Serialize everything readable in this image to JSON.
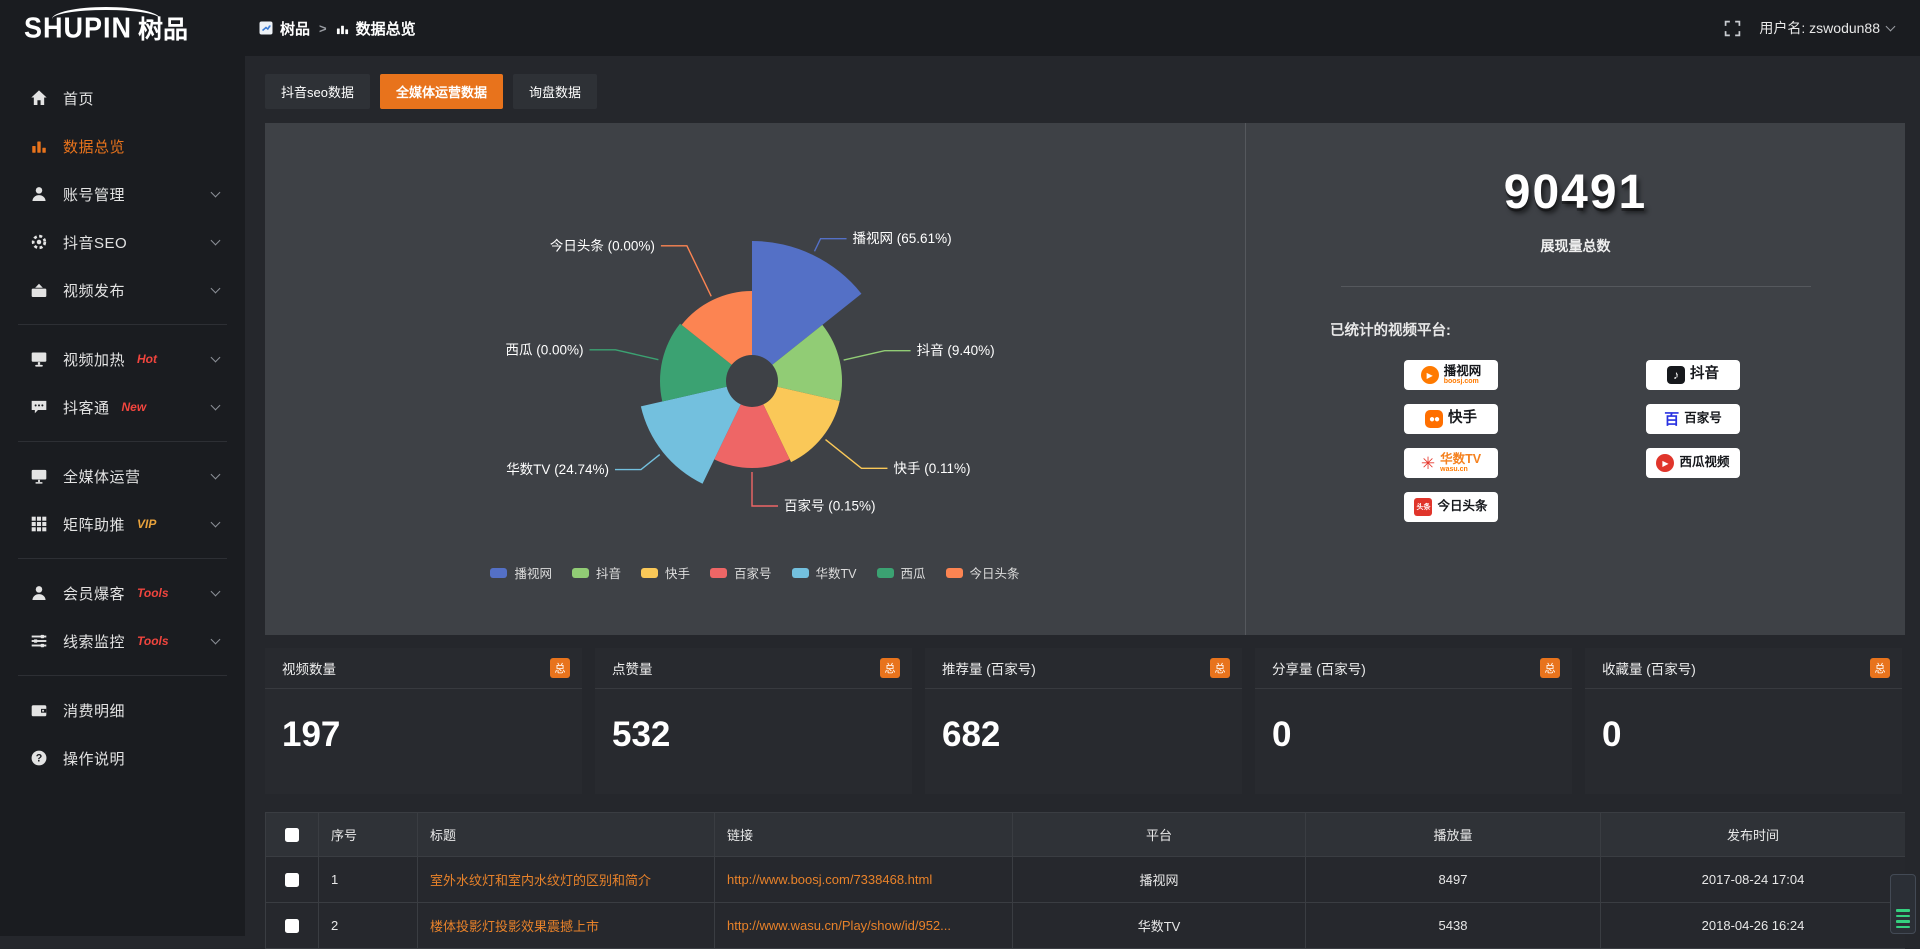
{
  "brand": {
    "name": "SHUPIN",
    "suffix": "树品"
  },
  "topbar": {
    "breadcrumb_root": "树品",
    "separator": ">",
    "breadcrumb_current": "数据总览",
    "username": "用户名: zswodun88"
  },
  "tabs": [
    {
      "label": "抖音seo数据"
    },
    {
      "label": "全媒体运营数据"
    },
    {
      "label": "询盘数据"
    }
  ],
  "sidebar": {
    "items": [
      {
        "label": "首页"
      },
      {
        "label": "数据总览"
      },
      {
        "label": "账号管理"
      },
      {
        "label": "抖音SEO"
      },
      {
        "label": "视频发布"
      },
      {
        "label": "视频加热",
        "badge": "Hot"
      },
      {
        "label": "抖客通",
        "badge": "New"
      },
      {
        "label": "全媒体运营"
      },
      {
        "label": "矩阵助推",
        "badge": "VIP"
      },
      {
        "label": "会员爆客",
        "badge": "Tools"
      },
      {
        "label": "线索监控",
        "badge": "Tools"
      },
      {
        "label": "消费明细"
      },
      {
        "label": "操作说明"
      }
    ]
  },
  "chart_data": {
    "type": "pie",
    "subtype": "nightingale-rose",
    "legend_position": "bottom",
    "inner_radius": 26,
    "items": [
      {
        "name": "播视网",
        "pct": 65.61,
        "color": "#5470c6",
        "r": 140,
        "leader": 14
      },
      {
        "name": "抖音",
        "pct": 9.4,
        "color": "#91cc75",
        "r": 90,
        "leader": 42
      },
      {
        "name": "快手",
        "pct": 0.11,
        "color": "#fac858",
        "r": 90,
        "leader": 46
      },
      {
        "name": "百家号",
        "pct": 0.15,
        "color": "#ee6666",
        "r": 87,
        "leader": 34
      },
      {
        "name": "华数TV",
        "pct": 24.74,
        "color": "#73c0de",
        "r": 114,
        "leader": 24
      },
      {
        "name": "西瓜",
        "pct": 0,
        "color": "#3ba272",
        "r": 92,
        "leader": 44
      },
      {
        "name": "今日头条",
        "pct": 0,
        "color": "#fc8452",
        "r": 90,
        "leader": 56
      }
    ]
  },
  "summary": {
    "total_value": "90491",
    "total_label": "展现量总数",
    "platforms_title": "已统计的视频平台:",
    "platforms": [
      {
        "name": "播视网",
        "sub": "boosj.com"
      },
      {
        "name": "快手"
      },
      {
        "name": "华数TV",
        "sub": "wasu.cn"
      },
      {
        "name": "今日头条",
        "logo_text": "头条"
      },
      {
        "name": "抖音",
        "logo_text": "♪"
      },
      {
        "name": "百家号",
        "logo_text": "百"
      },
      {
        "name": "西瓜视频"
      }
    ]
  },
  "stat_cards": [
    {
      "label": "视频数量",
      "badge": "总",
      "value": "197"
    },
    {
      "label": "点赞量",
      "badge": "总",
      "value": "532"
    },
    {
      "label": "推荐量 (百家号)",
      "badge": "总",
      "value": "682"
    },
    {
      "label": "分享量 (百家号)",
      "badge": "总",
      "value": "0"
    },
    {
      "label": "收藏量 (百家号)",
      "badge": "总",
      "value": "0"
    }
  ],
  "table": {
    "headers": [
      "序号",
      "标题",
      "链接",
      "平台",
      "播放量",
      "发布时间"
    ],
    "rows": [
      {
        "index": "1",
        "title": "室外水纹灯和室内水纹灯的区别和简介",
        "link": "http://www.boosj.com/7338468.html",
        "platform": "播视网",
        "plays": "8497",
        "published": "2017-08-24 17:04"
      },
      {
        "index": "2",
        "title": "楼体投影灯投影效果震撼上市",
        "link": "http://www.wasu.cn/Play/show/id/952...",
        "platform": "华数TV",
        "plays": "5438",
        "published": "2018-04-26 16:24"
      }
    ]
  },
  "colors": {
    "accent": "#e8731c"
  }
}
